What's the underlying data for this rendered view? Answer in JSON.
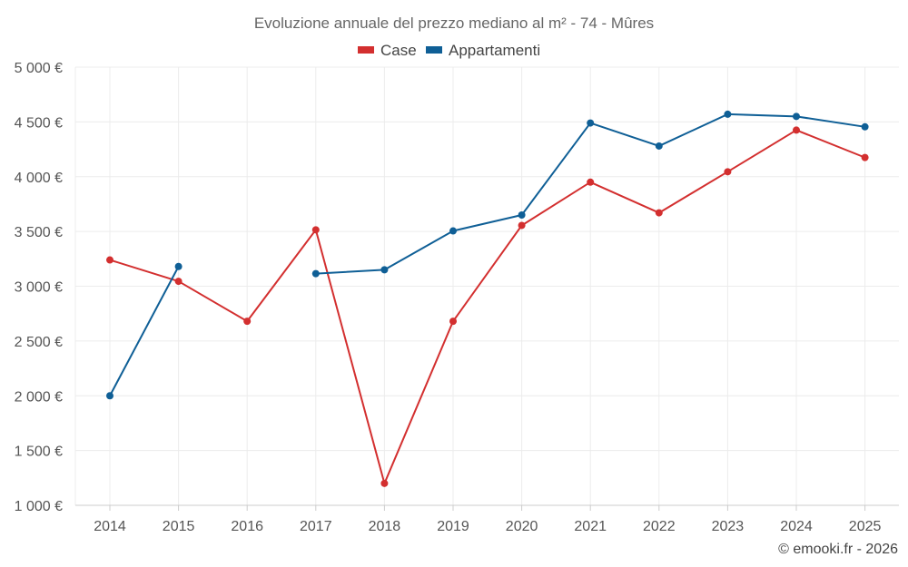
{
  "chart_data": {
    "type": "line",
    "title": "Evoluzione annuale del prezzo mediano al m² - 74 - Mûres",
    "xlabel": "",
    "ylabel": "",
    "categories": [
      "2014",
      "2015",
      "2016",
      "2017",
      "2018",
      "2019",
      "2020",
      "2021",
      "2022",
      "2023",
      "2024",
      "2025"
    ],
    "ylim": [
      1000,
      5000
    ],
    "yticks": [
      1000,
      1500,
      2000,
      2500,
      3000,
      3500,
      4000,
      4500,
      5000
    ],
    "ytick_labels": [
      "1 000 €",
      "1 500 €",
      "2 000 €",
      "2 500 €",
      "3 000 €",
      "3 500 €",
      "4 000 €",
      "4 500 €",
      "5 000 €"
    ],
    "grid": true,
    "legend_position": "top-center",
    "series": [
      {
        "name": "Case",
        "color": "#d32f2f",
        "values": [
          3240,
          3045,
          2680,
          3515,
          1200,
          2680,
          3555,
          3950,
          3670,
          4045,
          4425,
          4175
        ]
      },
      {
        "name": "Appartamenti",
        "color": "#0f5f96",
        "values": [
          2000,
          3180,
          null,
          3115,
          3150,
          3505,
          3650,
          4490,
          4280,
          4570,
          4550,
          4455
        ]
      }
    ]
  },
  "credit": "© emooki.fr - 2026"
}
